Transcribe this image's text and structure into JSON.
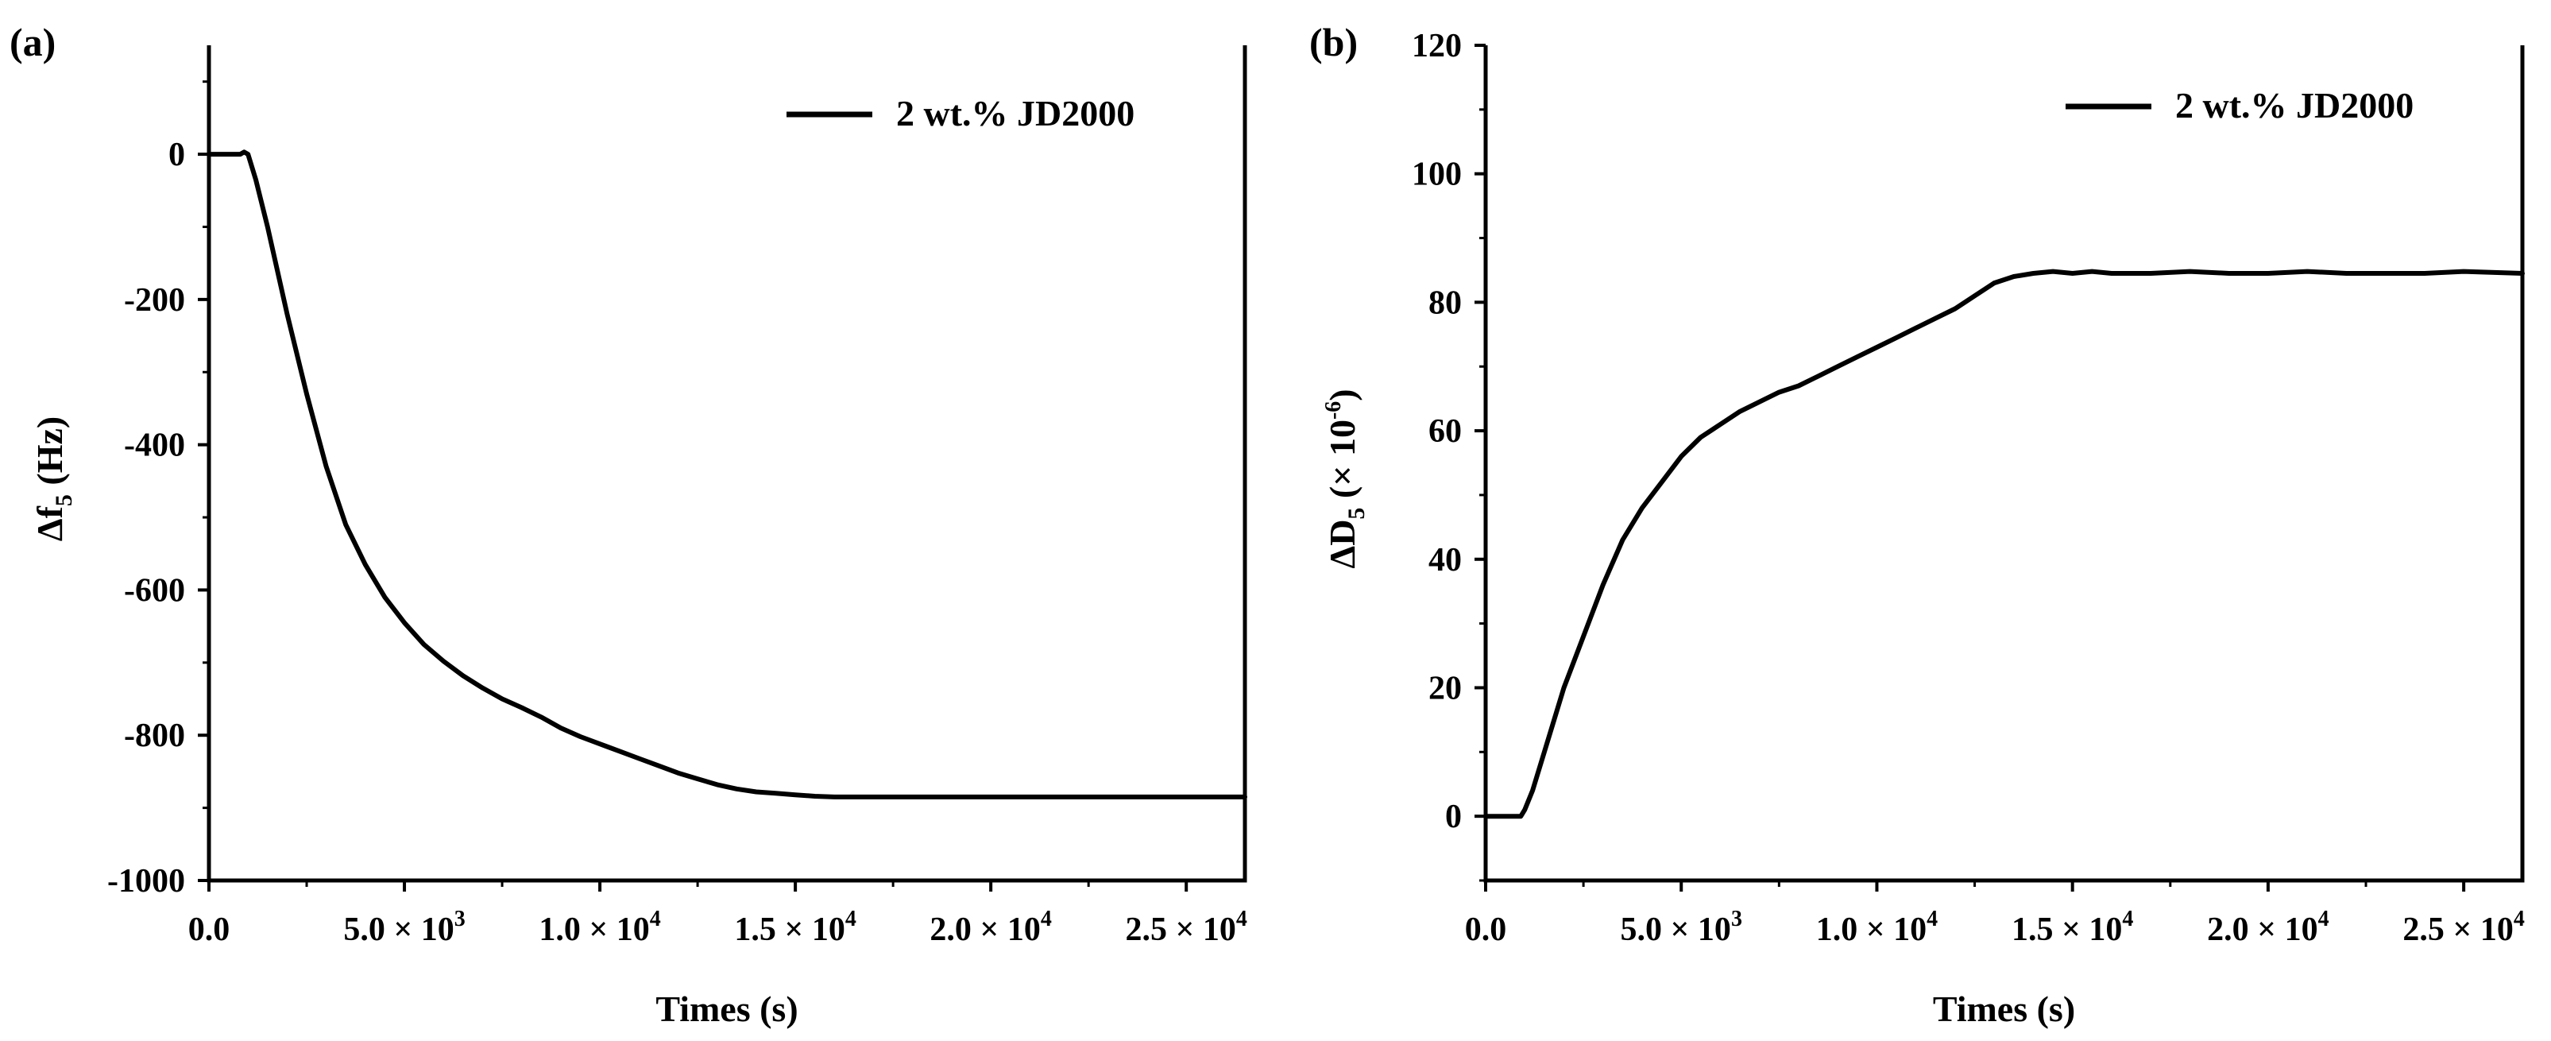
{
  "chart_data": [
    {
      "type": "line",
      "panel_label": "(a)",
      "xlabel": "Times (s)",
      "ylabel": {
        "main": "Δf",
        "sub": "5",
        "unit": " (Hz)"
      },
      "xlim": [
        0,
        26500
      ],
      "ylim": [
        -1000,
        150
      ],
      "xticks": [
        {
          "value": 0,
          "label": "0.0"
        },
        {
          "value": 5000,
          "label": "5.0 × 10",
          "sup": "3"
        },
        {
          "value": 10000,
          "label": "1.0 × 10",
          "sup": "4"
        },
        {
          "value": 15000,
          "label": "1.5 × 10",
          "sup": "4"
        },
        {
          "value": 20000,
          "label": "2.0 × 10",
          "sup": "4"
        },
        {
          "value": 25000,
          "label": "2.5 × 10",
          "sup": "4"
        }
      ],
      "yticks": [
        {
          "value": 0,
          "label": "0"
        },
        {
          "value": -200,
          "label": "-200"
        },
        {
          "value": -400,
          "label": "-400"
        },
        {
          "value": -600,
          "label": "-600"
        },
        {
          "value": -800,
          "label": "-800"
        },
        {
          "value": -1000,
          "label": "-1000"
        }
      ],
      "legend": {
        "position": "top-right",
        "label": "2 wt.% JD2000"
      },
      "series": [
        {
          "name": "2 wt.% JD2000",
          "x": [
            0,
            500,
            800,
            900,
            1000,
            1200,
            1500,
            2000,
            2500,
            3000,
            3500,
            4000,
            4500,
            5000,
            5500,
            6000,
            6500,
            7000,
            7500,
            8000,
            8500,
            9000,
            9500,
            10000,
            10500,
            11000,
            11500,
            12000,
            12500,
            13000,
            13500,
            14000,
            14500,
            15000,
            15500,
            16000,
            18000,
            20000,
            22000,
            24000,
            26500
          ],
          "y": [
            0,
            0,
            0,
            3,
            0,
            -35,
            -100,
            -220,
            -330,
            -430,
            -510,
            -565,
            -610,
            -645,
            -675,
            -698,
            -718,
            -735,
            -750,
            -762,
            -775,
            -790,
            -802,
            -812,
            -822,
            -832,
            -842,
            -852,
            -860,
            -868,
            -874,
            -878,
            -880,
            -882,
            -884,
            -885,
            -885,
            -885,
            -885,
            -885,
            -885
          ]
        }
      ]
    },
    {
      "type": "line",
      "panel_label": "(b)",
      "xlabel": "Times (s)",
      "ylabel": {
        "main": "ΔD",
        "sub": "5",
        "unit": " (× 10",
        "sup": "-6",
        "close": ")"
      },
      "xlim": [
        0,
        26500
      ],
      "ylim": [
        -10,
        120
      ],
      "xticks": [
        {
          "value": 0,
          "label": "0.0"
        },
        {
          "value": 5000,
          "label": "5.0 × 10",
          "sup": "3"
        },
        {
          "value": 10000,
          "label": "1.0 × 10",
          "sup": "4"
        },
        {
          "value": 15000,
          "label": "1.5 × 10",
          "sup": "4"
        },
        {
          "value": 20000,
          "label": "2.0 × 10",
          "sup": "4"
        },
        {
          "value": 25000,
          "label": "2.5 × 10",
          "sup": "4"
        }
      ],
      "yticks": [
        {
          "value": 0,
          "label": "0"
        },
        {
          "value": 20,
          "label": "20"
        },
        {
          "value": 40,
          "label": "40"
        },
        {
          "value": 60,
          "label": "60"
        },
        {
          "value": 80,
          "label": "80"
        },
        {
          "value": 100,
          "label": "100"
        },
        {
          "value": 120,
          "label": "120"
        }
      ],
      "legend": {
        "position": "top-right",
        "label": "2 wt.% JD2000"
      },
      "series": [
        {
          "name": "2 wt.% JD2000",
          "x": [
            0,
            500,
            900,
            1000,
            1200,
            1500,
            2000,
            2500,
            3000,
            3500,
            4000,
            4500,
            5000,
            5500,
            6000,
            6500,
            7000,
            7500,
            8000,
            8500,
            9000,
            9500,
            10000,
            10500,
            11000,
            11500,
            12000,
            12500,
            13000,
            13500,
            14000,
            14500,
            15000,
            15500,
            16000,
            17000,
            18000,
            19000,
            20000,
            21000,
            22000,
            23000,
            24000,
            25000,
            26500
          ],
          "y": [
            0,
            0,
            0,
            1,
            4,
            10,
            20,
            28,
            36,
            43,
            48,
            52,
            56,
            59,
            61,
            63,
            64.5,
            66,
            67,
            68.5,
            70,
            71.5,
            73,
            74.5,
            76,
            77.5,
            79,
            81,
            83,
            84,
            84.5,
            84.8,
            84.5,
            84.8,
            84.5,
            84.5,
            84.8,
            84.5,
            84.5,
            84.8,
            84.5,
            84.5,
            84.5,
            84.8,
            84.5
          ]
        }
      ]
    }
  ]
}
